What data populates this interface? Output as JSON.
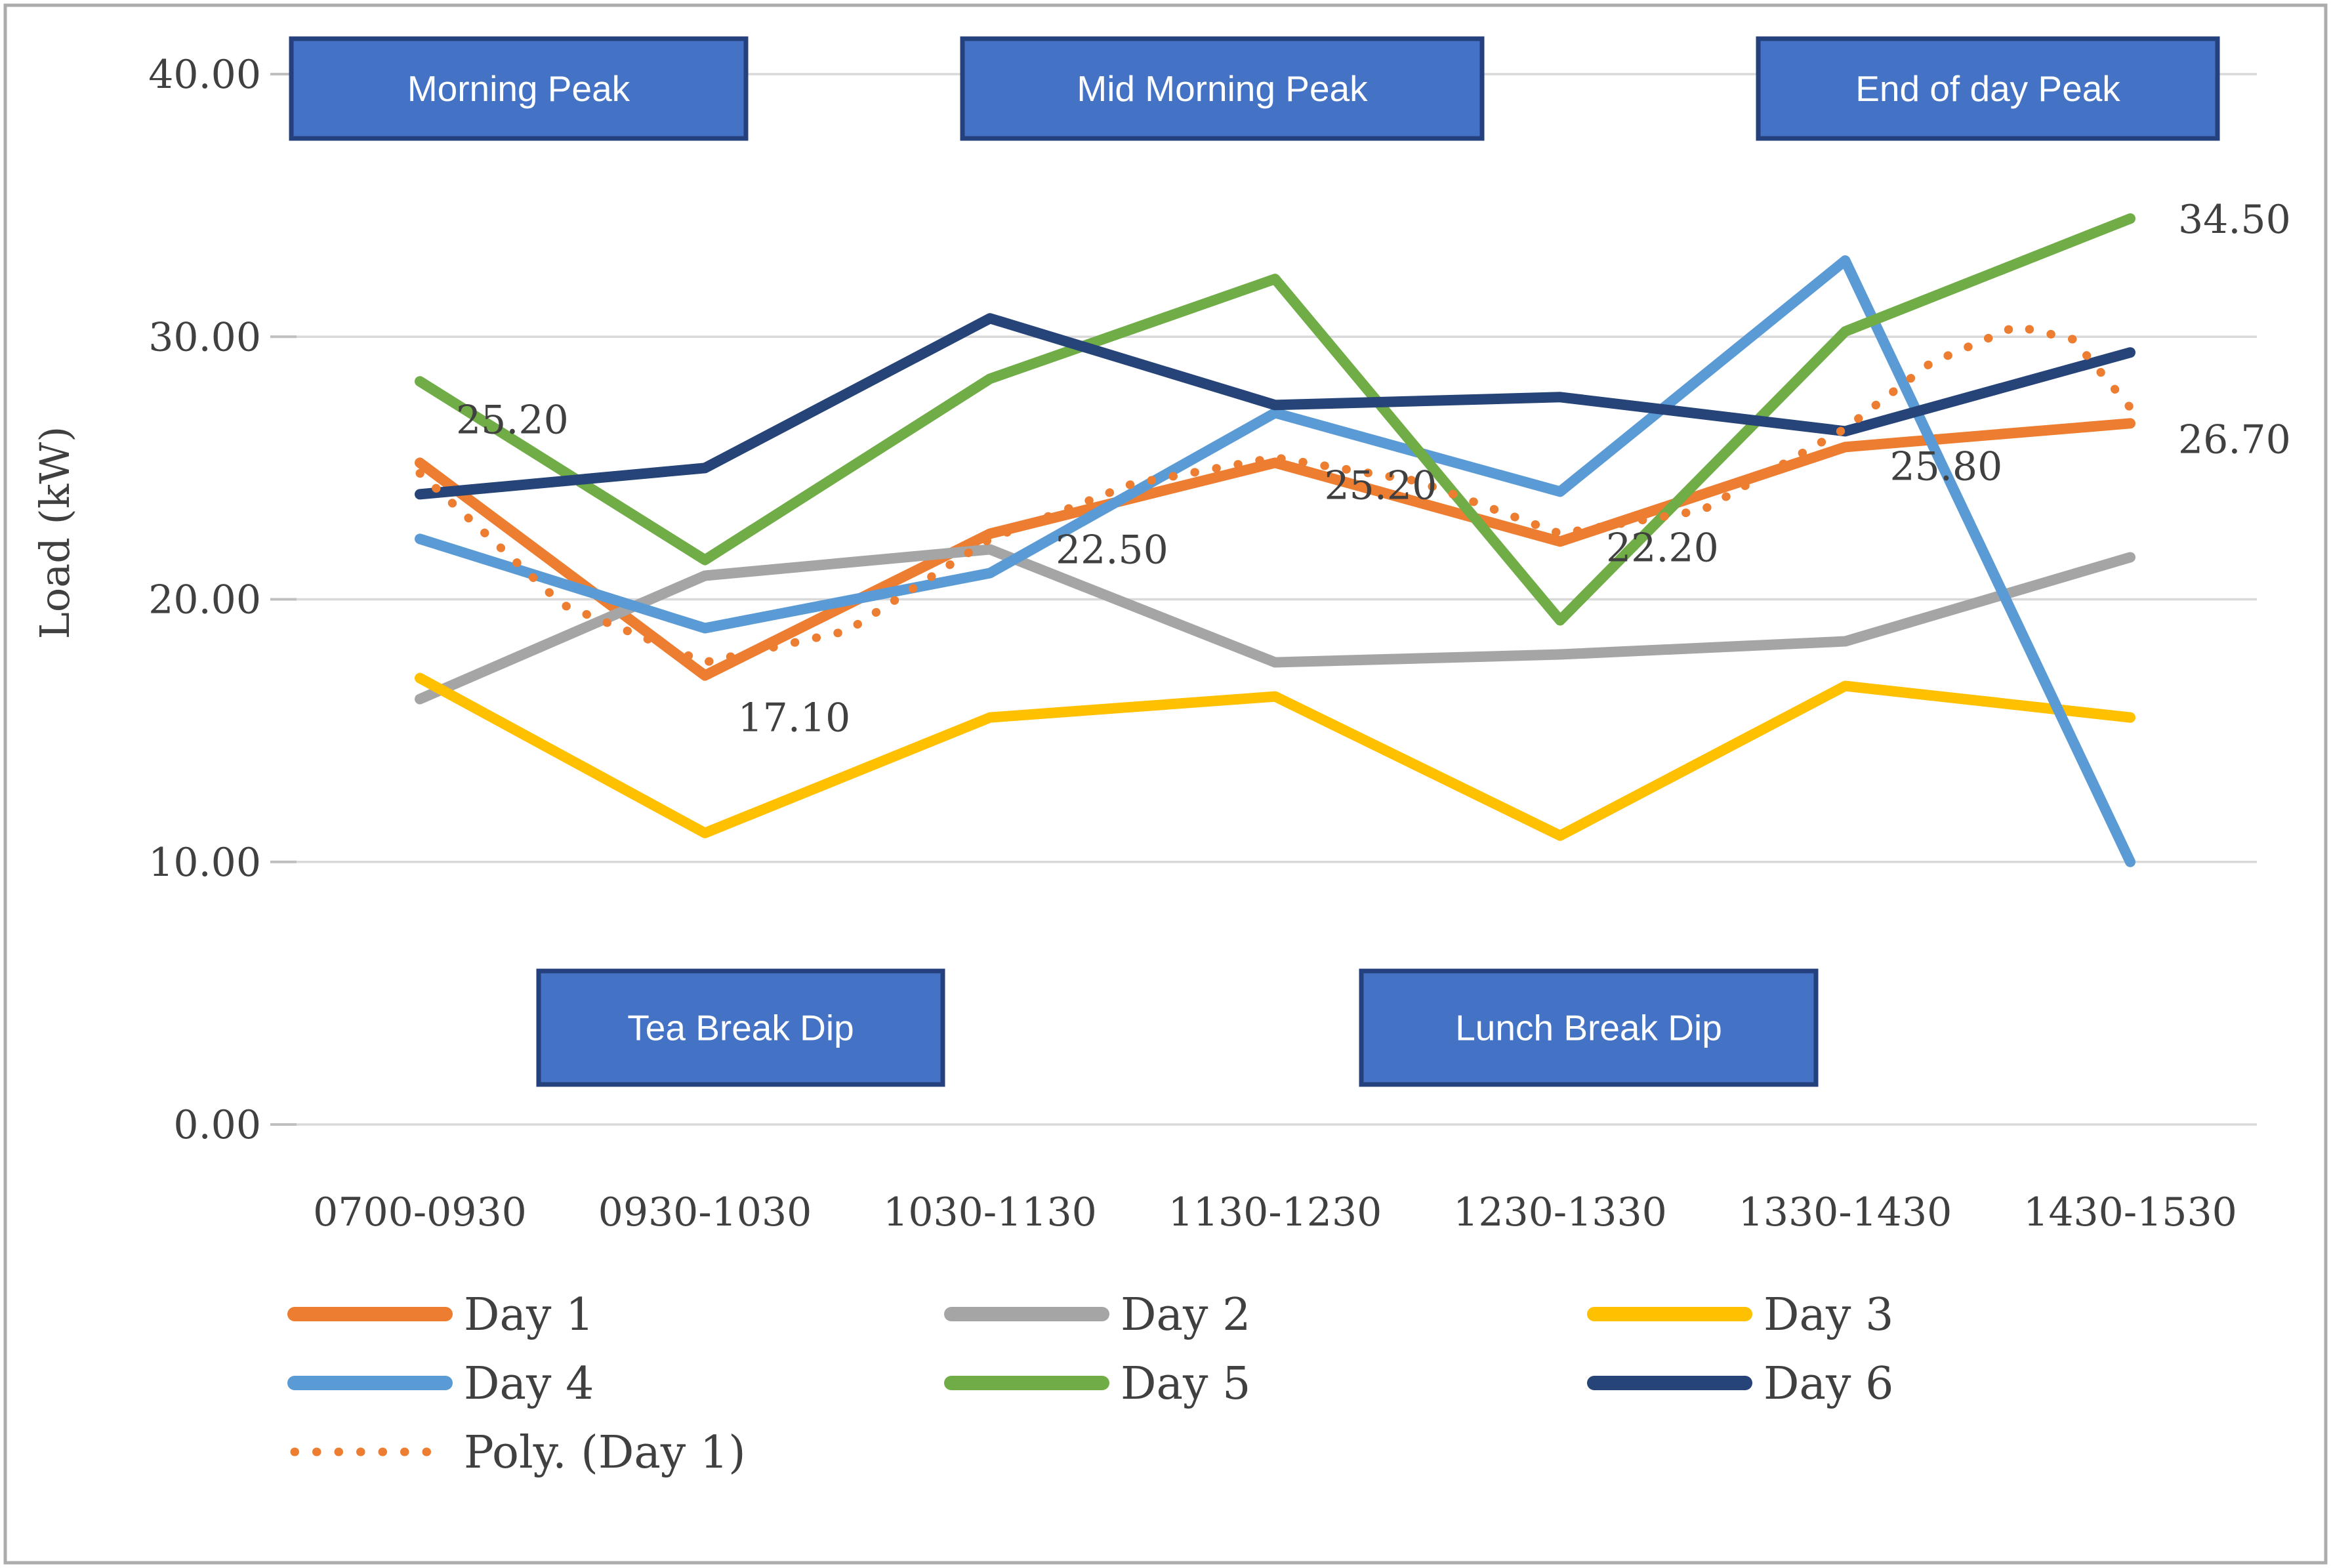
{
  "chart_data": {
    "type": "line",
    "title": "",
    "xlabel": "",
    "ylabel": "Load (kW)",
    "ylim": [
      0,
      40
    ],
    "grid": "horizontal",
    "y_ticks": [
      {
        "value": 40,
        "label": "40.00"
      },
      {
        "value": 30,
        "label": "30.00"
      },
      {
        "value": 20,
        "label": "20.00"
      },
      {
        "value": 10,
        "label": "10.00"
      },
      {
        "value": 0,
        "label": "0.00"
      }
    ],
    "categories": [
      "0700-0930",
      "0930-1030",
      "1030-1130",
      "1130-1230",
      "1230-1330",
      "1330-1430",
      "1430-1530"
    ],
    "series": [
      {
        "name": "Day 1",
        "color": "#ED7D31",
        "values": [
          25.2,
          17.1,
          22.5,
          25.2,
          22.2,
          25.8,
          26.7
        ],
        "data_labels": [
          "25.20",
          "17.10",
          "22.50",
          "25.20",
          "22.20",
          "25.80",
          "26.70"
        ]
      },
      {
        "name": "Day 2",
        "color": "#A5A5A5",
        "values": [
          16.2,
          20.9,
          21.9,
          17.6,
          17.9,
          18.4,
          21.6
        ],
        "data_labels": [
          "",
          "",
          "",
          "",
          "",
          "",
          ""
        ]
      },
      {
        "name": "Day 3",
        "color": "#FFC000",
        "values": [
          17.0,
          11.1,
          15.5,
          16.3,
          11.0,
          16.7,
          15.5
        ],
        "data_labels": [
          "",
          "",
          "",
          "",
          "",
          "",
          ""
        ]
      },
      {
        "name": "Day 4",
        "color": "#5B9BD5",
        "values": [
          22.3,
          18.9,
          21.0,
          27.1,
          24.1,
          32.9,
          10.0
        ],
        "data_labels": [
          "",
          "",
          "",
          "",
          "",
          "",
          ""
        ]
      },
      {
        "name": "Day 5",
        "color": "#70AD47",
        "values": [
          28.3,
          21.5,
          28.4,
          32.2,
          19.2,
          30.2,
          34.5
        ],
        "data_labels": [
          "",
          "",
          "",
          "",
          "",
          "",
          "34.50"
        ]
      },
      {
        "name": "Day 6",
        "color": "#264478",
        "values": [
          24.0,
          25.0,
          30.7,
          27.4,
          27.7,
          26.4,
          29.4
        ],
        "data_labels": [
          "",
          "",
          "",
          "",
          "",
          "",
          ""
        ]
      }
    ],
    "trendline": {
      "label": "Poly. (Day 1)",
      "of_series": "Day 1",
      "color": "#ED7D31",
      "style": "dotted",
      "samples": [
        [
          1,
          24.8
        ],
        [
          1.5,
          19.8
        ],
        [
          2,
          17.6
        ],
        [
          2.5,
          18.8
        ],
        [
          3,
          22.3
        ],
        [
          3.5,
          24.4
        ],
        [
          4,
          25.4
        ],
        [
          4.5,
          24.5
        ],
        [
          5,
          22.5
        ],
        [
          5.5,
          23.4
        ],
        [
          6,
          26.5
        ],
        [
          6.3,
          29.0
        ],
        [
          6.6,
          30.4
        ],
        [
          6.8,
          29.9
        ],
        [
          7,
          27.3
        ]
      ]
    },
    "annotations": [
      {
        "id": "morning-peak",
        "text": "Morning Peak"
      },
      {
        "id": "mid-morning-peak",
        "text": "Mid Morning Peak"
      },
      {
        "id": "end-of-day-peak",
        "text": "End of day Peak"
      },
      {
        "id": "tea-break-dip",
        "text": "Tea Break Dip"
      },
      {
        "id": "lunch-break-dip",
        "text": "Lunch Break Dip"
      }
    ],
    "legend": {
      "position": "bottom",
      "columns": 3,
      "entries": [
        "Day 1",
        "Day 2",
        "Day 3",
        "Day 4",
        "Day 5",
        "Day 6",
        "Poly. (Day 1)"
      ]
    },
    "colors": {
      "annotation_fill": "#4472C4",
      "annotation_border": "#24407D",
      "grid": "#D9D9D9",
      "tick": "#BFBFBF",
      "figure_border": "#ACACAC",
      "axis_text": "#404040"
    }
  }
}
